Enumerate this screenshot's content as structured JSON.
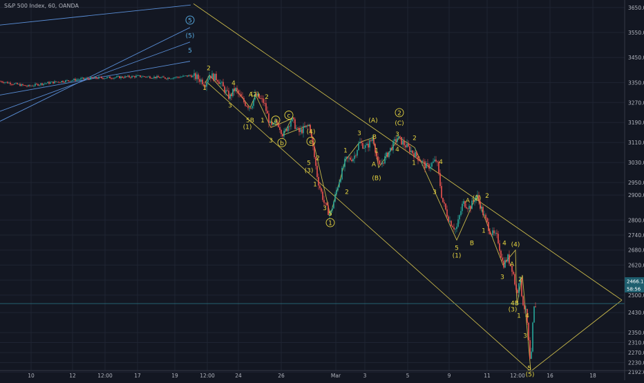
{
  "chart_data": {
    "type": "candlestick",
    "title": "S&P 500 Index, 60, OANDA",
    "xlabel": "",
    "ylabel": "",
    "ylim": [
      2165,
      3680
    ],
    "grid": true,
    "x_ticks": [
      "10",
      "12",
      "12:00",
      "17",
      "19",
      "12:00",
      "24",
      "26",
      "Mar",
      "3",
      "5",
      "9",
      "11",
      "12:00",
      "16",
      "18"
    ],
    "y_ticks": [
      3650.0,
      3550.0,
      3450.0,
      3350.0,
      3270.0,
      3190.0,
      3110.0,
      3030.0,
      2950.0,
      2900.0,
      2800.0,
      2740.0,
      2680.0,
      2620.0,
      2560.0,
      2500.0,
      2430.0,
      2350.0,
      2310.0,
      2270.0,
      2230.0,
      2192.0
    ],
    "last_price_label": "2466.1",
    "countdown_label": "58:56",
    "price_path": [
      [
        0,
        3355
      ],
      [
        20,
        3345
      ],
      [
        40,
        3335
      ],
      [
        60,
        3345
      ],
      [
        80,
        3352
      ],
      [
        100,
        3358
      ],
      [
        120,
        3365
      ],
      [
        140,
        3368
      ],
      [
        160,
        3370
      ],
      [
        180,
        3372
      ],
      [
        200,
        3375
      ],
      [
        220,
        3372
      ],
      [
        240,
        3368
      ],
      [
        260,
        3372
      ],
      [
        275,
        3378
      ],
      [
        285,
        3370
      ],
      [
        297,
        3348
      ],
      [
        303,
        3380
      ],
      [
        315,
        3365
      ],
      [
        332,
        3290
      ],
      [
        340,
        3325
      ],
      [
        352,
        3275
      ],
      [
        362,
        3250
      ],
      [
        370,
        3300
      ],
      [
        382,
        3270
      ],
      [
        392,
        3170
      ],
      [
        402,
        3190
      ],
      [
        410,
        3140
      ],
      [
        422,
        3205
      ],
      [
        432,
        3150
      ],
      [
        448,
        3180
      ],
      [
        460,
        2960
      ],
      [
        470,
        2860
      ],
      [
        478,
        2820
      ],
      [
        490,
        2950
      ],
      [
        500,
        3040
      ],
      [
        512,
        3050
      ],
      [
        520,
        3110
      ],
      [
        530,
        3090
      ],
      [
        540,
        3130
      ],
      [
        548,
        3010
      ],
      [
        560,
        3060
      ],
      [
        575,
        3130
      ],
      [
        590,
        3090
      ],
      [
        605,
        3050
      ],
      [
        618,
        3010
      ],
      [
        632,
        3040
      ],
      [
        640,
        2880
      ],
      [
        650,
        2800
      ],
      [
        660,
        2760
      ],
      [
        670,
        2870
      ],
      [
        680,
        2850
      ],
      [
        690,
        2900
      ],
      [
        700,
        2820
      ],
      [
        710,
        2750
      ],
      [
        720,
        2730
      ],
      [
        728,
        2620
      ],
      [
        735,
        2650
      ],
      [
        742,
        2600
      ],
      [
        748,
        2500
      ],
      [
        752,
        2580
      ],
      [
        756,
        2480
      ],
      [
        762,
        2420
      ],
      [
        768,
        2200
      ],
      [
        770,
        2320
      ],
      [
        772,
        2440
      ],
      [
        776,
        2466
      ]
    ],
    "trend_lines": [
      {
        "from": [
          0,
          3195
        ],
        "to": [
          275,
          3570
        ]
      },
      {
        "from": [
          0,
          3235
        ],
        "to": [
          275,
          3512
        ]
      },
      {
        "from": [
          0,
          3300
        ],
        "to": [
          275,
          3435
        ]
      },
      {
        "from": [
          280,
          3665
        ],
        "to": [
          900,
          2480
        ]
      },
      {
        "from": [
          300,
          3350
        ],
        "to": [
          768,
          2195
        ]
      },
      {
        "from": [
          768,
          2195
        ],
        "to": [
          900,
          2480
        ]
      }
    ],
    "wave_labels": [
      {
        "t": "5",
        "x": 275,
        "y": 3590,
        "circle": true,
        "cyan": true
      },
      {
        "t": "(5)",
        "x": 275,
        "y": 3530,
        "circle": false,
        "cyan": true
      },
      {
        "t": "5",
        "x": 275,
        "y": 3470,
        "circle": false,
        "cyan": true
      },
      {
        "t": "2",
        "x": 302,
        "y": 3400
      },
      {
        "t": "1",
        "x": 296,
        "y": 3320
      },
      {
        "t": "4",
        "x": 338,
        "y": 3340
      },
      {
        "t": "3",
        "x": 333,
        "y": 3250
      },
      {
        "t": "A",
        "x": 363,
        "y": 3295
      },
      {
        "t": "(2)",
        "x": 369,
        "y": 3295
      },
      {
        "t": "5B",
        "x": 362,
        "y": 3190
      },
      {
        "t": "(1)",
        "x": 358,
        "y": 3165
      },
      {
        "t": "2",
        "x": 386,
        "y": 3285
      },
      {
        "t": "1",
        "x": 380,
        "y": 3190
      },
      {
        "t": "a",
        "x": 399,
        "y": 3190,
        "circle": true
      },
      {
        "t": "c",
        "x": 418,
        "y": 3210,
        "circle": true
      },
      {
        "t": "3",
        "x": 392,
        "y": 3110
      },
      {
        "t": "b",
        "x": 408,
        "y": 3100,
        "circle": true
      },
      {
        "t": "(4)",
        "x": 450,
        "y": 3145
      },
      {
        "t": "e",
        "x": 450,
        "y": 3105,
        "circle": true
      },
      {
        "t": "2",
        "x": 460,
        "y": 3040
      },
      {
        "t": "5",
        "x": 447,
        "y": 3020
      },
      {
        "t": "(3)",
        "x": 447,
        "y": 2990
      },
      {
        "t": "1",
        "x": 456,
        "y": 2935
      },
      {
        "t": "3",
        "x": 470,
        "y": 2840
      },
      {
        "t": "5",
        "x": 478,
        "y": 2818
      },
      {
        "t": "1",
        "x": 478,
        "y": 2780,
        "circle": true
      },
      {
        "t": "1",
        "x": 500,
        "y": 3070
      },
      {
        "t": "2",
        "x": 502,
        "y": 2905
      },
      {
        "t": "3",
        "x": 520,
        "y": 3140
      },
      {
        "t": "(A)",
        "x": 540,
        "y": 3190
      },
      {
        "t": "B",
        "x": 542,
        "y": 3125
      },
      {
        "t": "1",
        "x": 545,
        "y": 3070
      },
      {
        "t": "A",
        "x": 541,
        "y": 3015
      },
      {
        "t": "(B)",
        "x": 545,
        "y": 2960
      },
      {
        "t": "2",
        "x": 578,
        "y": 3220,
        "circle": true
      },
      {
        "t": "(C)",
        "x": 578,
        "y": 3180
      },
      {
        "t": "3",
        "x": 575,
        "y": 3135
      },
      {
        "t": "4",
        "x": 575,
        "y": 3075
      },
      {
        "t": "2",
        "x": 600,
        "y": 3120
      },
      {
        "t": "1",
        "x": 599,
        "y": 3020
      },
      {
        "t": "4",
        "x": 638,
        "y": 3025
      },
      {
        "t": "3",
        "x": 629,
        "y": 2905
      },
      {
        "t": "5",
        "x": 661,
        "y": 2680
      },
      {
        "t": "(1)",
        "x": 661,
        "y": 2650
      },
      {
        "t": "A",
        "x": 677,
        "y": 2870
      },
      {
        "t": "B",
        "x": 683,
        "y": 2700
      },
      {
        "t": "(2)",
        "x": 690,
        "y": 2880
      },
      {
        "t": "2",
        "x": 705,
        "y": 2890
      },
      {
        "t": "1",
        "x": 700,
        "y": 2750
      },
      {
        "t": "4",
        "x": 730,
        "y": 2700
      },
      {
        "t": "3",
        "x": 727,
        "y": 2565
      },
      {
        "t": "(4)",
        "x": 746,
        "y": 2695
      },
      {
        "t": "A",
        "x": 741,
        "y": 2615
      },
      {
        "t": "2",
        "x": 753,
        "y": 2555
      },
      {
        "t": "4B",
        "x": 745,
        "y": 2460
      },
      {
        "t": "(3)",
        "x": 742,
        "y": 2435
      },
      {
        "t": "1",
        "x": 751,
        "y": 2410
      },
      {
        "t": "4",
        "x": 763,
        "y": 2410
      },
      {
        "t": "3",
        "x": 760,
        "y": 2330
      },
      {
        "t": "5",
        "x": 766,
        "y": 2200
      },
      {
        "t": "(5)",
        "x": 767,
        "y": 2175
      }
    ]
  }
}
